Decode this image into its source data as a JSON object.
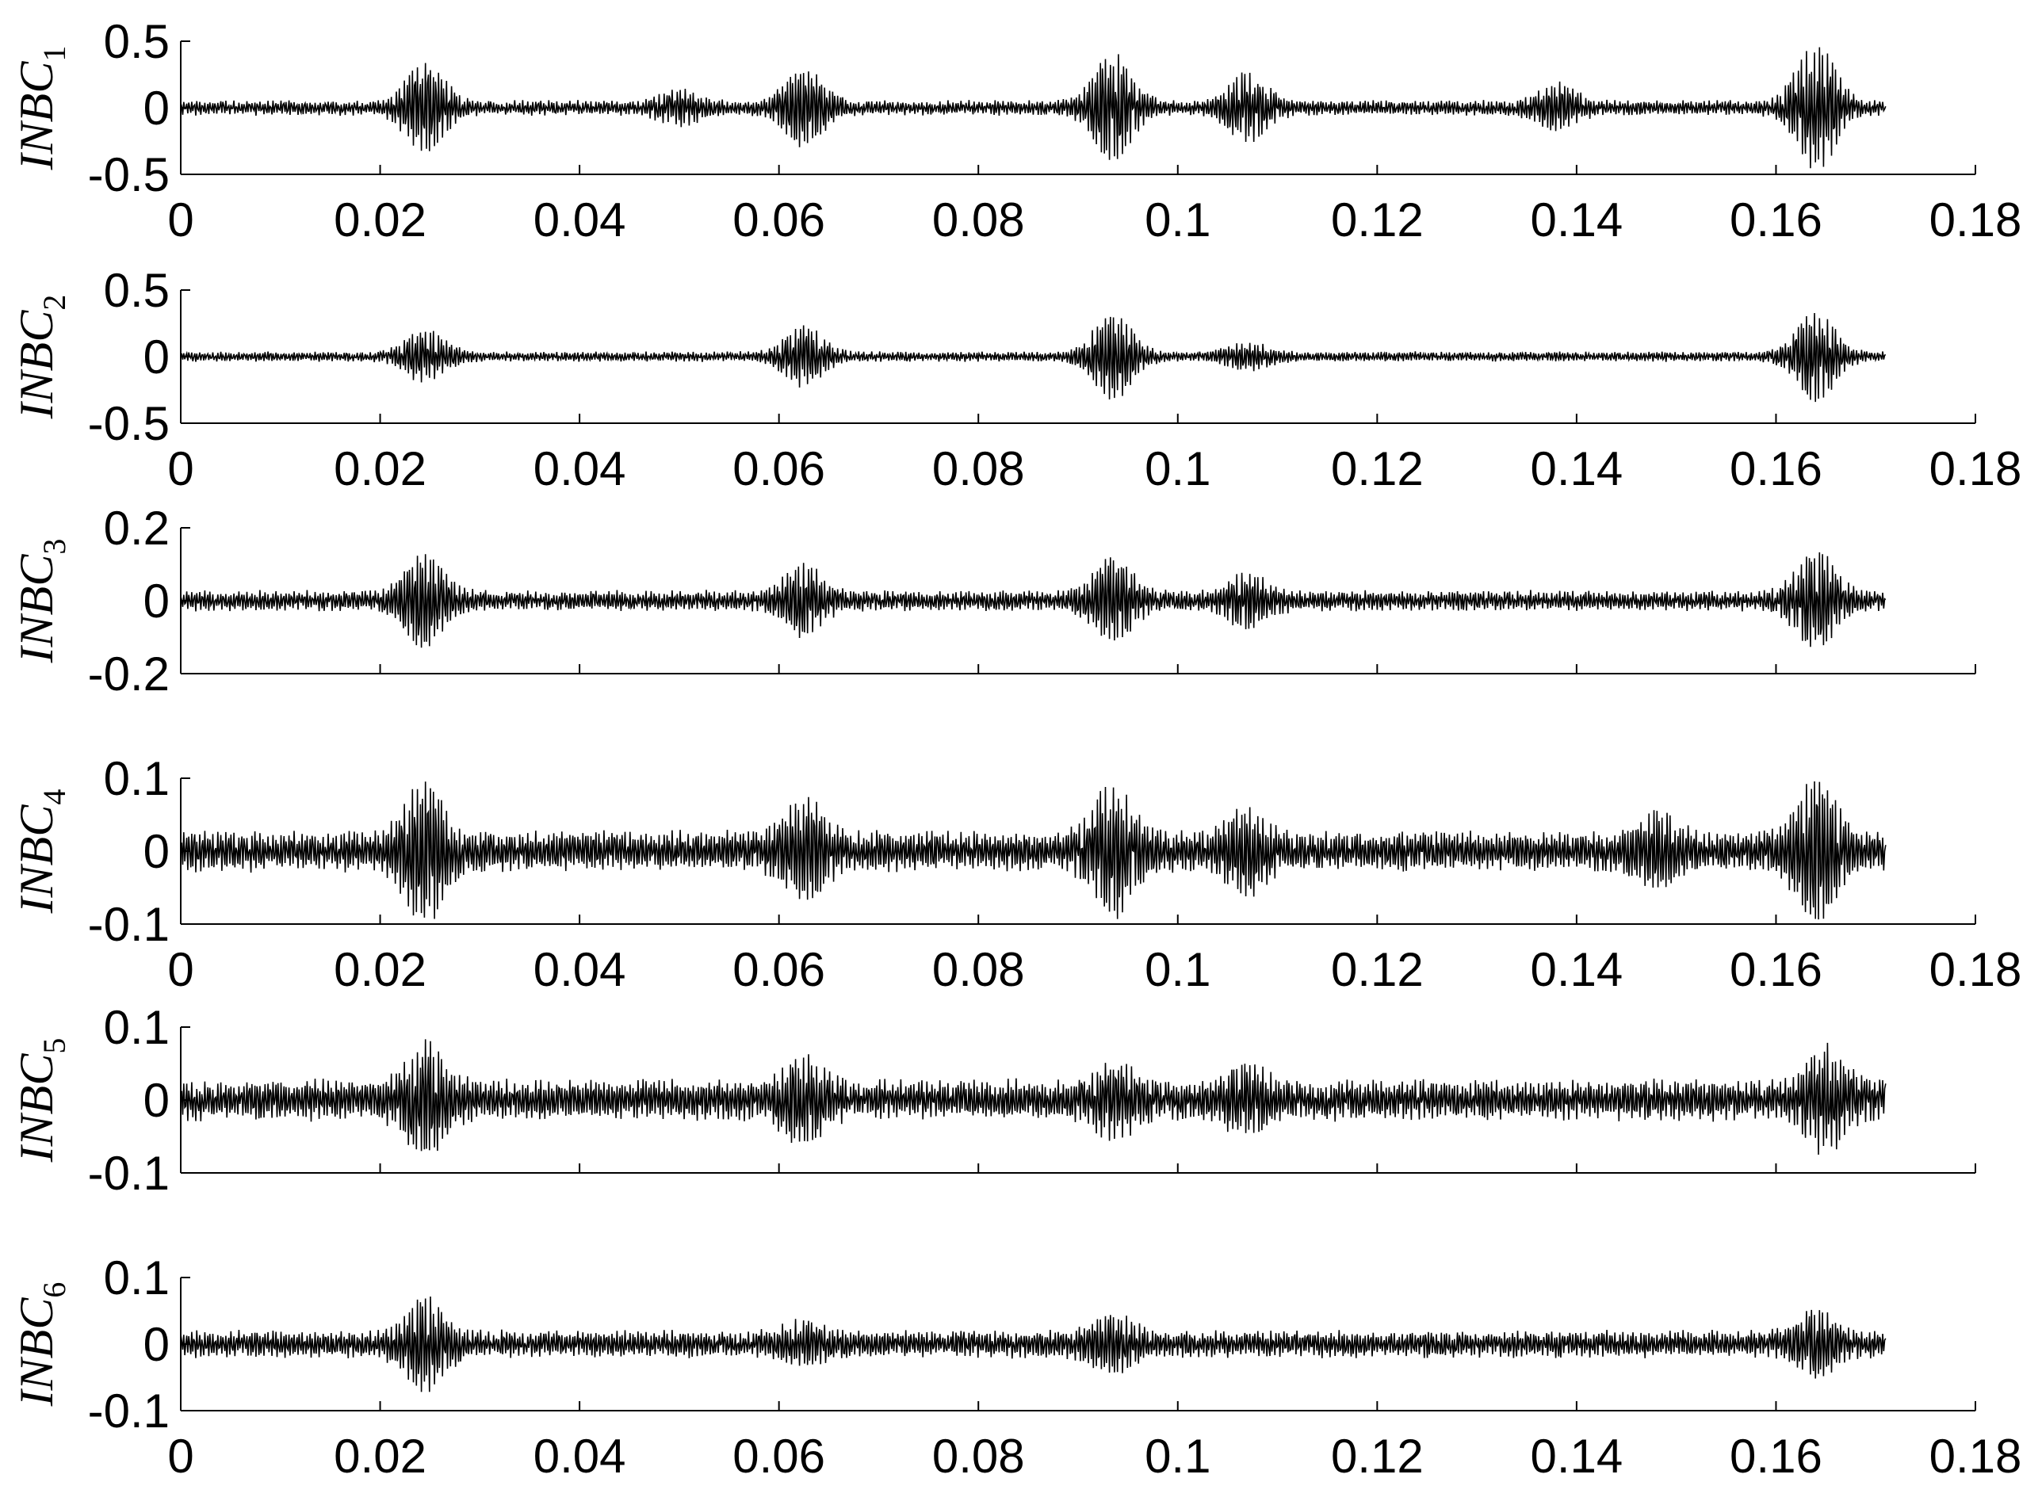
{
  "chart_data": [
    {
      "type": "line",
      "ylabel": "INBC",
      "ylabel_sub": "1",
      "xlim": [
        0,
        0.18
      ],
      "ylim": [
        -0.5,
        0.5
      ],
      "x_ticks": [
        "0",
        "0.02",
        "0.04",
        "0.06",
        "0.08",
        "0.1",
        "0.12",
        "0.14",
        "0.16",
        "0.18"
      ],
      "y_ticks": [
        "0.5",
        "0",
        "-0.5"
      ],
      "show_x_tick_labels": true,
      "series": [
        {
          "x_range": [
            0,
            0.171
          ],
          "base_amplitude": 0.06,
          "bursts": [
            {
              "t": 0.0245,
              "amp": 0.33
            },
            {
              "t": 0.05,
              "amp": 0.12
            },
            {
              "t": 0.0625,
              "amp": 0.28
            },
            {
              "t": 0.0935,
              "amp": 0.39
            },
            {
              "t": 0.107,
              "amp": 0.25
            },
            {
              "t": 0.138,
              "amp": 0.17
            },
            {
              "t": 0.164,
              "amp": 0.47
            }
          ]
        }
      ]
    },
    {
      "type": "line",
      "ylabel": "INBC",
      "ylabel_sub": "2",
      "xlim": [
        0,
        0.18
      ],
      "ylim": [
        -0.5,
        0.5
      ],
      "x_ticks": [
        "0",
        "0.02",
        "0.04",
        "0.06",
        "0.08",
        "0.1",
        "0.12",
        "0.14",
        "0.16",
        "0.18"
      ],
      "y_ticks": [
        "0.5",
        "0",
        "-0.5"
      ],
      "show_x_tick_labels": true,
      "series": [
        {
          "x_range": [
            0,
            0.171
          ],
          "base_amplitude": 0.04,
          "bursts": [
            {
              "t": 0.0245,
              "amp": 0.2
            },
            {
              "t": 0.0625,
              "amp": 0.22
            },
            {
              "t": 0.0935,
              "amp": 0.32
            },
            {
              "t": 0.107,
              "amp": 0.1
            },
            {
              "t": 0.164,
              "amp": 0.33
            }
          ]
        }
      ]
    },
    {
      "type": "line",
      "ylabel": "INBC",
      "ylabel_sub": "3",
      "xlim": [
        0,
        0.18
      ],
      "ylim": [
        -0.2,
        0.2
      ],
      "x_ticks": [
        "0",
        "0.02",
        "0.04",
        "0.06",
        "0.08",
        "0.1",
        "0.12",
        "0.14",
        "0.16",
        "0.18"
      ],
      "y_ticks": [
        "0.2",
        "0",
        "-0.2"
      ],
      "show_x_tick_labels": false,
      "series": [
        {
          "x_range": [
            0,
            0.171
          ],
          "base_amplitude": 0.03,
          "bursts": [
            {
              "t": 0.0245,
              "amp": 0.12
            },
            {
              "t": 0.0625,
              "amp": 0.09
            },
            {
              "t": 0.0935,
              "amp": 0.11
            },
            {
              "t": 0.107,
              "amp": 0.07
            },
            {
              "t": 0.164,
              "amp": 0.13
            }
          ]
        }
      ]
    },
    {
      "type": "line",
      "ylabel": "INBC",
      "ylabel_sub": "4",
      "xlim": [
        0,
        0.18
      ],
      "ylim": [
        -0.1,
        0.1
      ],
      "x_ticks": [
        "0",
        "0.02",
        "0.04",
        "0.06",
        "0.08",
        "0.1",
        "0.12",
        "0.14",
        "0.16",
        "0.18"
      ],
      "y_ticks": [
        "0.1",
        "0",
        "-0.1"
      ],
      "show_x_tick_labels": true,
      "series": [
        {
          "x_range": [
            0,
            0.171
          ],
          "base_amplitude": 0.03,
          "bursts": [
            {
              "t": 0.0245,
              "amp": 0.09
            },
            {
              "t": 0.0625,
              "amp": 0.065
            },
            {
              "t": 0.0935,
              "amp": 0.085
            },
            {
              "t": 0.107,
              "amp": 0.05
            },
            {
              "t": 0.148,
              "amp": 0.045
            },
            {
              "t": 0.164,
              "amp": 0.09
            }
          ]
        }
      ]
    },
    {
      "type": "line",
      "ylabel": "INBC",
      "ylabel_sub": "5",
      "xlim": [
        0,
        0.18
      ],
      "ylim": [
        -0.1,
        0.1
      ],
      "x_ticks": [
        "0",
        "0.02",
        "0.04",
        "0.06",
        "0.08",
        "0.1",
        "0.12",
        "0.14",
        "0.16",
        "0.18"
      ],
      "y_ticks": [
        "0.1",
        "0",
        "-0.1"
      ],
      "show_x_tick_labels": false,
      "series": [
        {
          "x_range": [
            0,
            0.171
          ],
          "base_amplitude": 0.03,
          "bursts": [
            {
              "t": 0.0245,
              "amp": 0.07
            },
            {
              "t": 0.0625,
              "amp": 0.055
            },
            {
              "t": 0.0935,
              "amp": 0.045
            },
            {
              "t": 0.107,
              "amp": 0.045
            },
            {
              "t": 0.165,
              "amp": 0.065
            }
          ]
        }
      ]
    },
    {
      "type": "line",
      "ylabel": "INBC",
      "ylabel_sub": "6",
      "xlim": [
        0,
        0.18
      ],
      "ylim": [
        -0.1,
        0.1
      ],
      "x_ticks": [
        "0",
        "0.02",
        "0.04",
        "0.06",
        "0.08",
        "0.1",
        "0.12",
        "0.14",
        "0.16",
        "0.18"
      ],
      "y_ticks": [
        "0.1",
        "0",
        "-0.1"
      ],
      "show_x_tick_labels": true,
      "series": [
        {
          "x_range": [
            0,
            0.171
          ],
          "base_amplitude": 0.022,
          "bursts": [
            {
              "t": 0.0245,
              "amp": 0.065
            },
            {
              "t": 0.0625,
              "amp": 0.03
            },
            {
              "t": 0.0935,
              "amp": 0.04
            },
            {
              "t": 0.164,
              "amp": 0.045
            }
          ]
        }
      ]
    }
  ]
}
